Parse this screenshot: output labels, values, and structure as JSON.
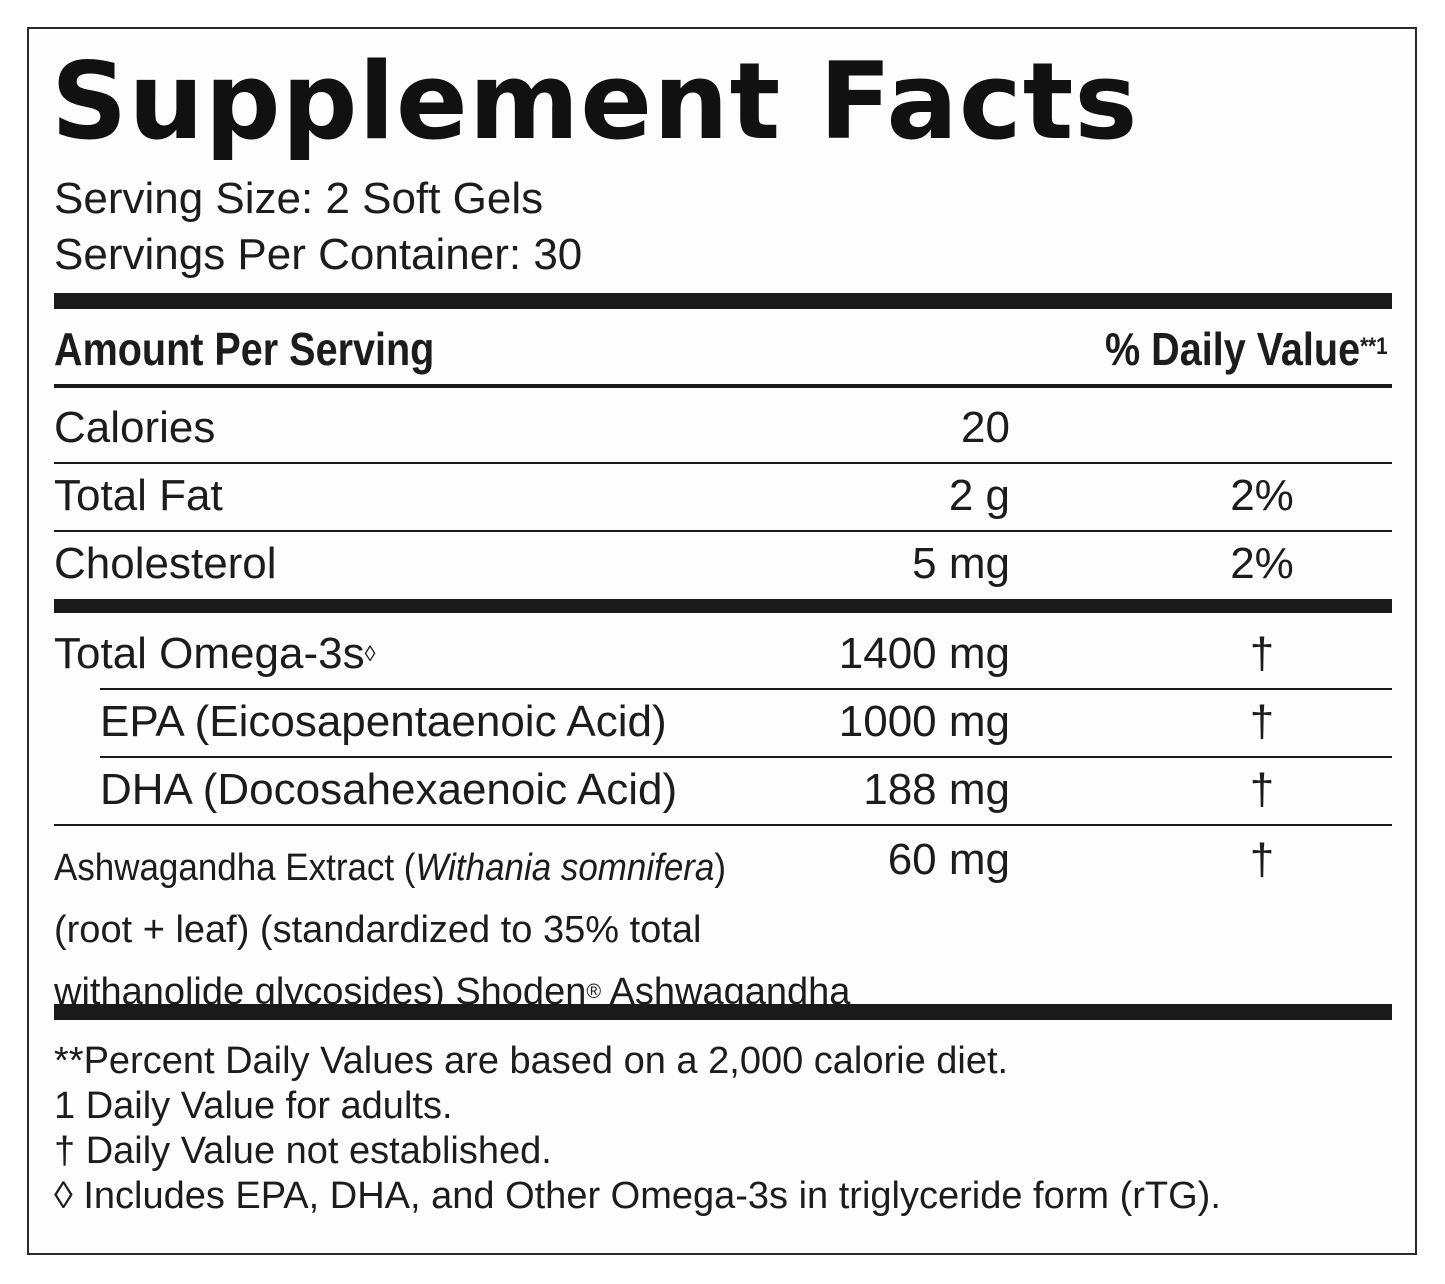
{
  "title": "Supplement Facts",
  "serving_size": "Serving Size: 2 Soft Gels",
  "servings_per_container": "Servings Per Container: 30",
  "header": {
    "amount_per_serving": "Amount Per Serving",
    "daily_value": "% Daily Value",
    "daily_value_marker": "**1"
  },
  "rows": [
    {
      "name": "Calories",
      "amount": "20",
      "dv": ""
    },
    {
      "name": "Total Fat",
      "amount": "2 g",
      "dv": "2%"
    },
    {
      "name": "Cholesterol",
      "amount": "5 mg",
      "dv": "2%"
    },
    {
      "name": "Total Omega-3s",
      "marker": "◊",
      "amount": "1400 mg",
      "dv": "†"
    },
    {
      "name": "EPA (Eicosapentaenoic Acid)",
      "amount": "1000 mg",
      "dv": "†"
    },
    {
      "name": "DHA (Docosahexaenoic Acid)",
      "amount": "188 mg",
      "dv": "†"
    }
  ],
  "ashwagandha": {
    "name_prefix": "Ashwagandha Extract (",
    "latin": "Withania somnifera",
    "name_suffix": ")",
    "line2": "(root + leaf) (standardized to 35% total",
    "line3_prefix": "withanolide glycosides) Shoden",
    "registered": "®",
    "line3_suffix": " Ashwagandha",
    "amount": "60 mg",
    "dv": "†"
  },
  "footnotes": [
    "**Percent Daily Values are based on a 2,000 calorie diet.",
    "1 Daily Value for adults.",
    "† Daily Value not established.",
    "◊ Includes EPA, DHA, and Other Omega-3s in triglyceride form (rTG)."
  ]
}
